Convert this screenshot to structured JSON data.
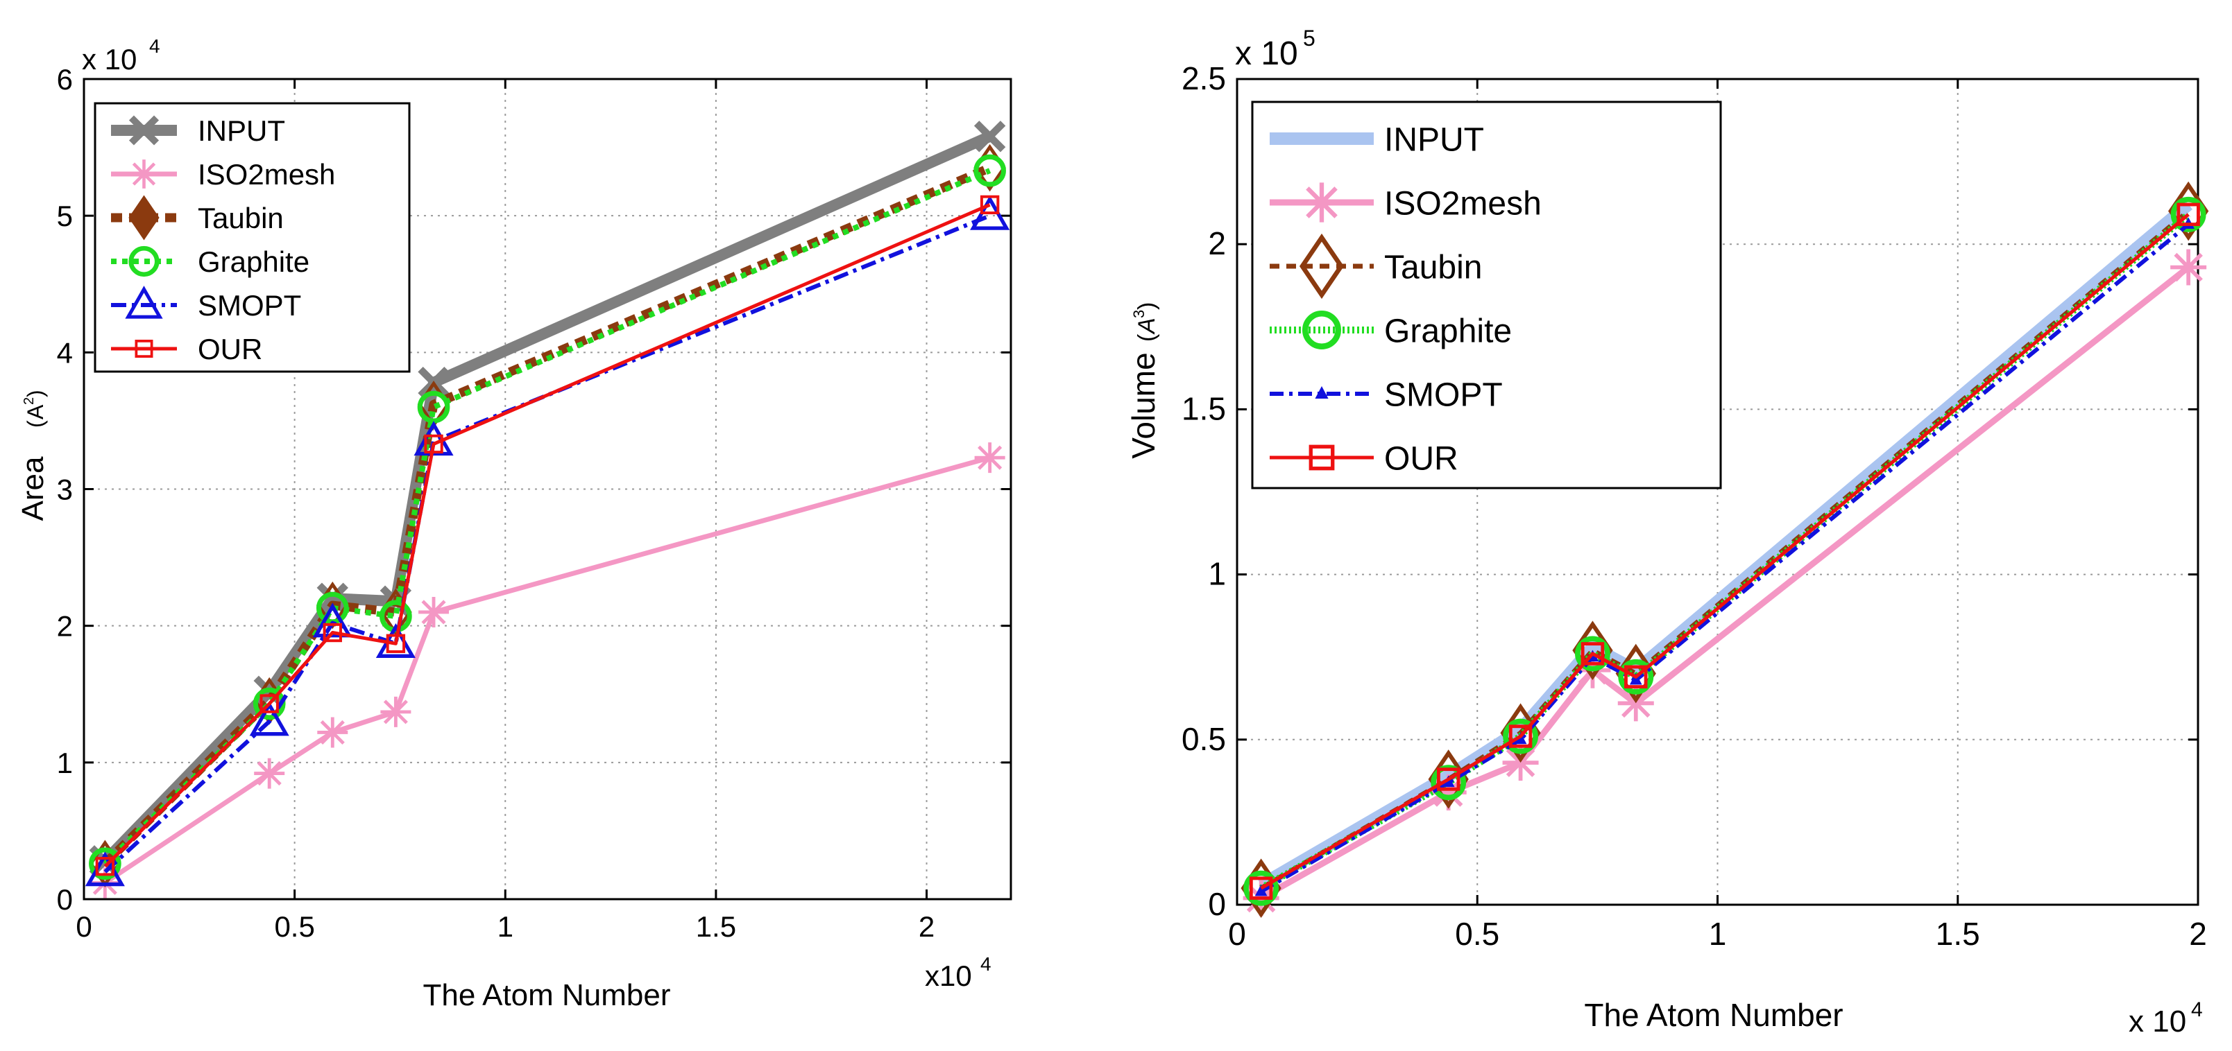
{
  "chart_data": [
    {
      "type": "line",
      "xlabel": "The Atom Number",
      "ylabel": "Area",
      "ylabel_unit_base": "A",
      "ylabel_unit_exp": "2",
      "x_multiplier": "x10",
      "x_multiplier_exp": "4",
      "y_multiplier": "x 10",
      "y_multiplier_exp": "4",
      "xlim": [
        0,
        2.2
      ],
      "ylim": [
        0,
        6
      ],
      "xticks": [
        0,
        0.5,
        1,
        1.5,
        2
      ],
      "xtick_labels": [
        "0",
        "0.5",
        "1",
        "1.5",
        "2"
      ],
      "yticks": [
        0,
        1,
        2,
        3,
        4,
        5,
        6
      ],
      "ytick_labels": [
        "0",
        "1",
        "2",
        "3",
        "4",
        "5",
        "6"
      ],
      "grid": true,
      "legend_position": "top-left",
      "x": [
        0.05,
        0.44,
        0.59,
        0.74,
        0.83,
        2.15
      ],
      "series": [
        {
          "name": "INPUT",
          "color": "#7f7f7f",
          "values": [
            0.28,
            1.52,
            2.2,
            2.18,
            3.78,
            5.58
          ]
        },
        {
          "name": "ISO2mesh",
          "color": "#f497c4",
          "values": [
            0.12,
            0.92,
            1.22,
            1.37,
            2.1,
            3.23
          ]
        },
        {
          "name": "Taubin",
          "color": "#8b3a0f",
          "values": [
            0.26,
            1.45,
            2.15,
            2.1,
            3.62,
            5.35
          ]
        },
        {
          "name": "Graphite",
          "color": "#22dd22",
          "values": [
            0.26,
            1.43,
            2.13,
            2.07,
            3.6,
            5.33
          ]
        },
        {
          "name": "SMOPT",
          "color": "#1111dd",
          "values": [
            0.2,
            1.3,
            2.02,
            1.87,
            3.35,
            5.0
          ]
        },
        {
          "name": "OUR",
          "color": "#ee1111",
          "values": [
            0.24,
            1.43,
            1.95,
            1.87,
            3.33,
            5.08
          ]
        }
      ]
    },
    {
      "type": "line",
      "xlabel": "The Atom Number",
      "ylabel": "Volume",
      "ylabel_unit_base": "A",
      "ylabel_unit_exp": "3",
      "x_multiplier": "x 10",
      "x_multiplier_exp": "4",
      "y_multiplier": "x 10",
      "y_multiplier_exp": "5",
      "xlim": [
        0,
        2
      ],
      "ylim": [
        0,
        2.5
      ],
      "xticks": [
        0,
        0.5,
        1,
        1.5,
        2
      ],
      "xtick_labels": [
        "0",
        "0.5",
        "1",
        "1.5",
        "2"
      ],
      "yticks": [
        0,
        0.5,
        1,
        1.5,
        2,
        2.5
      ],
      "ytick_labels": [
        "0",
        "0.5",
        "1",
        "1.5",
        "2",
        "2.5"
      ],
      "grid": true,
      "legend_position": "top-left",
      "x": [
        0.05,
        0.44,
        0.59,
        0.74,
        0.83,
        1.98
      ],
      "series": [
        {
          "name": "INPUT",
          "color": "#aac4f0",
          "values": [
            0.06,
            0.39,
            0.53,
            0.78,
            0.71,
            2.12
          ]
        },
        {
          "name": "ISO2mesh",
          "color": "#f497c4",
          "values": [
            0.02,
            0.34,
            0.43,
            0.71,
            0.61,
            1.93
          ]
        },
        {
          "name": "Taubin",
          "color": "#8b3a0f",
          "values": [
            0.05,
            0.38,
            0.52,
            0.77,
            0.7,
            2.1
          ]
        },
        {
          "name": "Graphite",
          "color": "#22dd22",
          "values": [
            0.05,
            0.37,
            0.51,
            0.76,
            0.69,
            2.09
          ]
        },
        {
          "name": "SMOPT",
          "color": "#1111dd",
          "values": [
            0.04,
            0.37,
            0.5,
            0.75,
            0.68,
            2.06
          ]
        },
        {
          "name": "OUR",
          "color": "#ee1111",
          "values": [
            0.05,
            0.38,
            0.51,
            0.76,
            0.69,
            2.09
          ]
        }
      ]
    }
  ]
}
